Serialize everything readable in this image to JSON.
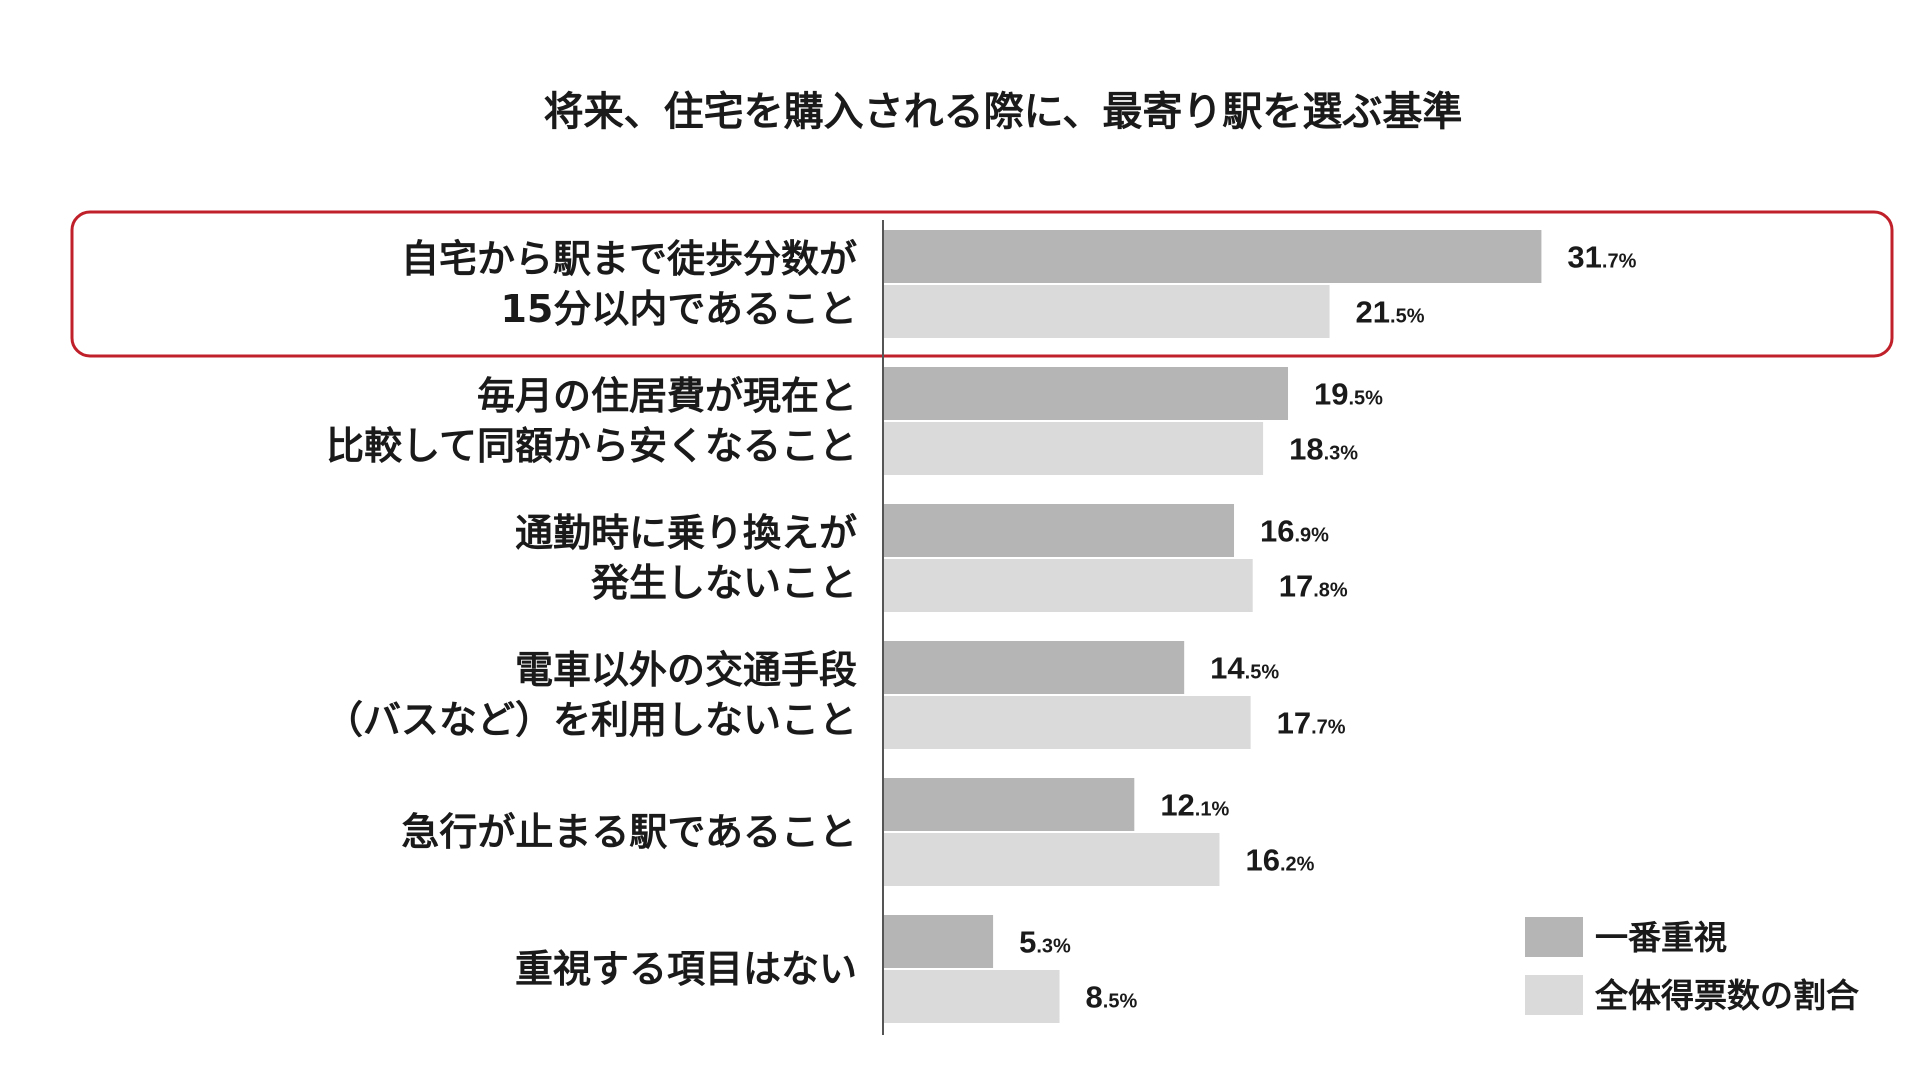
{
  "chart_data": {
    "type": "bar",
    "orientation": "horizontal",
    "title": "将来、住宅を購入される際に、最寄り駅を選ぶ基準",
    "categories": [
      [
        "自宅から駅まで徒歩分数が",
        "15分以内であること"
      ],
      [
        "毎月の住居費が現在と",
        "比較して同額から安くなること"
      ],
      [
        "通勤時に乗り換えが",
        "発生しないこと"
      ],
      [
        "電車以外の交通手段",
        "（バスなど）を利用しないこと"
      ],
      [
        "急行が止まる駅であること"
      ],
      [
        "重視する項目はない"
      ]
    ],
    "series": [
      {
        "name": "一番重視",
        "color": "#b5b5b5",
        "values": [
          31.7,
          19.5,
          16.9,
          14.5,
          12.1,
          5.3
        ]
      },
      {
        "name": "全体得票数の割合",
        "color": "#dadada",
        "values": [
          21.5,
          18.3,
          17.8,
          17.7,
          16.2,
          8.5
        ]
      }
    ],
    "value_unit": "%",
    "highlighted_category_index": 0,
    "highlight_color": "#c0202a",
    "legend_position": "bottom-right",
    "grid": false
  }
}
